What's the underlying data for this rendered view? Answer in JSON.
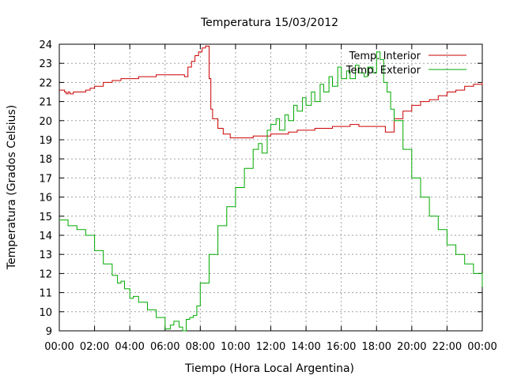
{
  "chart_data": {
    "type": "line",
    "title": "Temperatura 15/03/2012",
    "xlabel": "Tiempo (Hora Local Argentina)",
    "ylabel": "Temperatura (Grados Celsius)",
    "xlim": [
      0,
      24
    ],
    "ylim": [
      9,
      24
    ],
    "x_ticks": [
      "00:00",
      "02:00",
      "04:00",
      "06:00",
      "08:00",
      "10:00",
      "12:00",
      "14:00",
      "16:00",
      "18:00",
      "20:00",
      "22:00",
      "00:00"
    ],
    "y_ticks": [
      9,
      10,
      11,
      12,
      13,
      14,
      15,
      16,
      17,
      18,
      19,
      20,
      21,
      22,
      23,
      24
    ],
    "grid": true,
    "legend_position": "top-right",
    "series": [
      {
        "name": "Temp. Interior",
        "color": "#cc0000",
        "x": [
          0,
          0.3,
          0.4,
          0.5,
          0.6,
          0.8,
          1,
          1.5,
          1.75,
          2,
          2.5,
          3,
          3.5,
          4,
          4.5,
          5,
          5.5,
          6,
          6.5,
          7,
          7.1,
          7.3,
          7.5,
          7.7,
          7.9,
          8.1,
          8.3,
          8.4,
          8.5,
          8.6,
          8.7,
          9,
          9.3,
          9.7,
          10,
          10.5,
          11,
          11.5,
          12,
          12.5,
          13,
          13.5,
          14,
          14.5,
          15,
          15.5,
          16,
          16.5,
          17,
          17.5,
          18,
          18.3,
          18.5,
          18.7,
          19,
          19.5,
          20,
          20.5,
          21,
          21.5,
          22,
          22.5,
          23,
          23.5,
          24
        ],
        "y": [
          21.6,
          21.5,
          21.4,
          21.5,
          21.4,
          21.5,
          21.5,
          21.6,
          21.7,
          21.8,
          22,
          22.1,
          22.2,
          22.2,
          22.3,
          22.3,
          22.4,
          22.4,
          22.4,
          22.4,
          22.3,
          22.8,
          23.1,
          23.4,
          23.6,
          23.8,
          23.9,
          23.9,
          22.2,
          20.6,
          20.1,
          19.6,
          19.3,
          19.1,
          19.1,
          19.1,
          19.2,
          19.2,
          19.3,
          19.3,
          19.4,
          19.5,
          19.5,
          19.6,
          19.6,
          19.7,
          19.7,
          19.8,
          19.7,
          19.7,
          19.7,
          19.7,
          19.4,
          19.4,
          20.1,
          20.5,
          20.8,
          21,
          21.1,
          21.3,
          21.5,
          21.6,
          21.8,
          21.9,
          22
        ]
      },
      {
        "name": "Temp. Exterior",
        "color": "#00aa00",
        "x": [
          0,
          0.5,
          1,
          1.5,
          2,
          2.5,
          3,
          3.3,
          3.5,
          3.7,
          4,
          4.2,
          4.5,
          5,
          5.5,
          6,
          6.3,
          6.5,
          6.8,
          7,
          7.2,
          7.4,
          7.6,
          7.8,
          8,
          8.5,
          9,
          9.5,
          10,
          10.5,
          11,
          11.3,
          11.5,
          11.8,
          12,
          12.3,
          12.5,
          12.8,
          13,
          13.3,
          13.5,
          13.8,
          14,
          14.3,
          14.5,
          14.8,
          15,
          15.3,
          15.5,
          15.8,
          16,
          16.3,
          16.5,
          16.8,
          17,
          17.3,
          17.5,
          17.8,
          18,
          18.2,
          18.4,
          18.6,
          18.8,
          19,
          19.5,
          20,
          20.5,
          21,
          21.5,
          22,
          22.5,
          23,
          23.5,
          24
        ],
        "y": [
          14.8,
          14.5,
          14.3,
          14,
          13.2,
          12.5,
          11.9,
          11.5,
          11.6,
          11.2,
          10.7,
          10.8,
          10.5,
          10.1,
          9.7,
          9.1,
          9.3,
          9.5,
          9.2,
          9,
          9.6,
          9.7,
          9.8,
          10.3,
          11.5,
          13,
          14.5,
          15.5,
          16.5,
          17.5,
          18.5,
          18.8,
          18.3,
          19.5,
          19.8,
          20.1,
          19.5,
          20.3,
          20,
          20.8,
          20.5,
          21.2,
          20.8,
          21.5,
          21,
          21.9,
          21.5,
          22.3,
          21.8,
          22.8,
          22.2,
          22.6,
          22.2,
          22.9,
          22.5,
          22.3,
          22.8,
          22.5,
          23.6,
          23.2,
          22,
          21.5,
          20.6,
          20,
          18.5,
          17,
          16,
          15,
          14.3,
          13.5,
          13,
          12.5,
          12,
          11.3
        ]
      }
    ]
  }
}
